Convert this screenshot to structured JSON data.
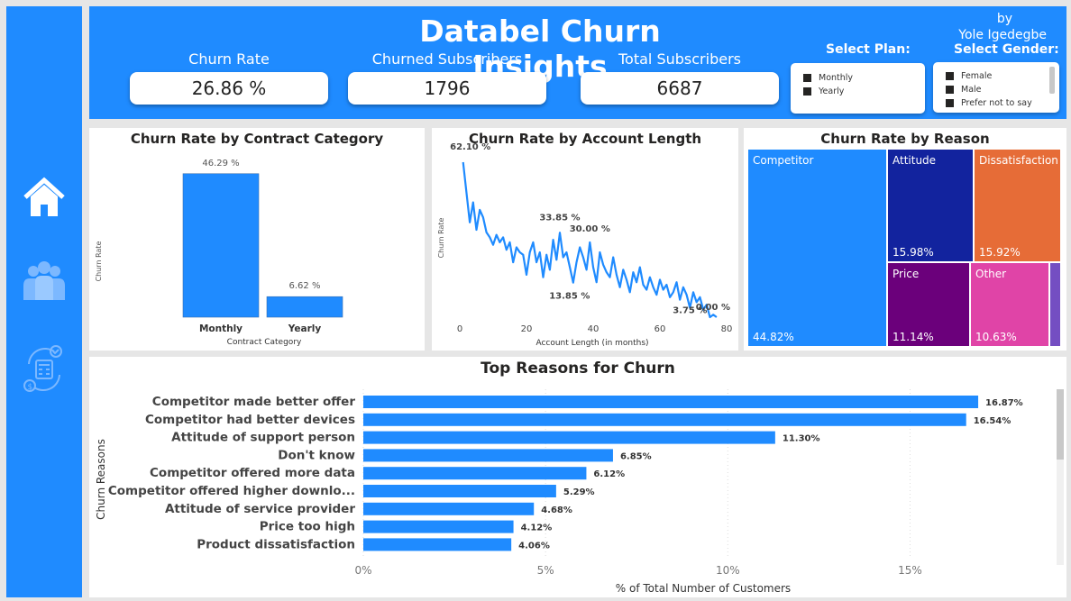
{
  "header": {
    "title": "Databel Churn Insights",
    "byline_1": "by",
    "byline_2": "Yole Igedegbe"
  },
  "kpis": [
    {
      "label": "Churn Rate",
      "value": "26.86 %"
    },
    {
      "label": "Churned Subscribers",
      "value": "1796"
    },
    {
      "label": "Total Subscribers",
      "value": "6687"
    }
  ],
  "slicers": {
    "plan": {
      "title": "Select Plan:",
      "items": [
        "Monthly",
        "Yearly"
      ]
    },
    "gender": {
      "title": "Select Gender:",
      "items": [
        "Female",
        "Male",
        "Prefer not to say"
      ]
    }
  },
  "nav": {
    "icons": [
      "home-icon",
      "people-icon",
      "billing-cycle-icon"
    ]
  },
  "colors": {
    "accent": "#1f8bff",
    "attitude": "#12239e",
    "dissatisfaction": "#e66c37",
    "price": "#6b007b",
    "other": "#e044a7",
    "sliver": "#744ec2"
  },
  "chart_data": [
    {
      "type": "bar",
      "title": "Churn Rate by Contract Category",
      "xlabel": "Contract Category",
      "ylabel": "Churn Rate",
      "categories": [
        "Monthly",
        "Yearly"
      ],
      "values": [
        46.29,
        6.62
      ],
      "value_labels": [
        "46.29 %",
        "6.62 %"
      ],
      "ylim": [
        0,
        50
      ]
    },
    {
      "type": "line",
      "title": "Churn Rate by Account Length",
      "xlabel": "Account Length (in months)",
      "ylabel": "Churn Rate",
      "x_ticks": [
        "0",
        "20",
        "40",
        "60",
        "80"
      ],
      "xlim": [
        0,
        80
      ],
      "ylim": [
        0,
        65
      ],
      "x": [
        1,
        2,
        3,
        4,
        5,
        6,
        7,
        8,
        9,
        10,
        11,
        12,
        13,
        14,
        15,
        16,
        17,
        18,
        19,
        20,
        21,
        22,
        23,
        24,
        25,
        26,
        27,
        28,
        29,
        30,
        31,
        32,
        33,
        34,
        35,
        36,
        37,
        38,
        39,
        40,
        41,
        42,
        43,
        44,
        45,
        46,
        47,
        48,
        49,
        50,
        51,
        52,
        53,
        54,
        55,
        56,
        57,
        58,
        59,
        60,
        61,
        62,
        63,
        64,
        65,
        66,
        67,
        68,
        69,
        70,
        71,
        72,
        73,
        74,
        75,
        76,
        77
      ],
      "y": [
        62.1,
        50,
        38,
        46,
        35,
        43,
        40,
        34,
        32,
        29,
        33,
        30,
        32,
        27,
        30,
        22,
        28,
        26,
        25,
        17,
        26,
        30,
        22,
        26,
        16,
        25,
        19,
        31,
        23,
        33.85,
        24,
        26,
        20,
        13.85,
        22,
        28,
        24,
        19,
        30,
        20,
        14,
        26,
        21,
        18,
        16,
        24,
        17,
        12,
        19,
        15,
        10,
        18,
        14,
        20,
        13,
        11,
        16,
        12,
        9,
        15,
        11,
        13,
        8,
        10,
        14,
        7,
        12,
        9,
        3.75,
        10,
        6,
        8,
        3,
        5,
        0,
        1,
        0
      ],
      "point_labels": [
        {
          "x": 1,
          "text": "62.10 %"
        },
        {
          "x": 30,
          "text": "33.85 %"
        },
        {
          "x": 34,
          "text": "13.85 %"
        },
        {
          "x": 39,
          "text": "30.00 %"
        },
        {
          "x": 69,
          "text": "3.75 %"
        },
        {
          "x": 77,
          "text": "0.00 %"
        }
      ]
    },
    {
      "type": "treemap",
      "title": "Churn Rate by Reason",
      "categories": [
        "Competitor",
        "Attitude",
        "Dissatisfaction",
        "Price",
        "Other"
      ],
      "values": [
        44.82,
        15.98,
        15.92,
        11.14,
        10.63
      ],
      "value_labels": [
        "44.82%",
        "15.98%",
        "15.92%",
        "11.14%",
        "10.63%"
      ]
    },
    {
      "type": "bar",
      "orientation": "horizontal",
      "title": "Top Reasons for Churn",
      "xlabel": "% of Total Number of Customers",
      "ylabel": "Churn Reasons",
      "categories": [
        "Competitor made better offer",
        "Competitor had better devices",
        "Attitude of support person",
        "Don't know",
        "Competitor offered more data",
        "Competitor offered higher downlo...",
        "Attitude of service provider",
        "Price too high",
        "Product dissatisfaction"
      ],
      "values": [
        16.87,
        16.54,
        11.3,
        6.85,
        6.12,
        5.29,
        4.68,
        4.12,
        4.06
      ],
      "value_labels": [
        "16.87%",
        "16.54%",
        "11.30%",
        "6.85%",
        "6.12%",
        "5.29%",
        "4.68%",
        "4.12%",
        "4.06%"
      ],
      "x_ticks": [
        "0%",
        "5%",
        "10%",
        "15%"
      ],
      "xlim": [
        0,
        18.6
      ],
      "grid": true
    }
  ]
}
